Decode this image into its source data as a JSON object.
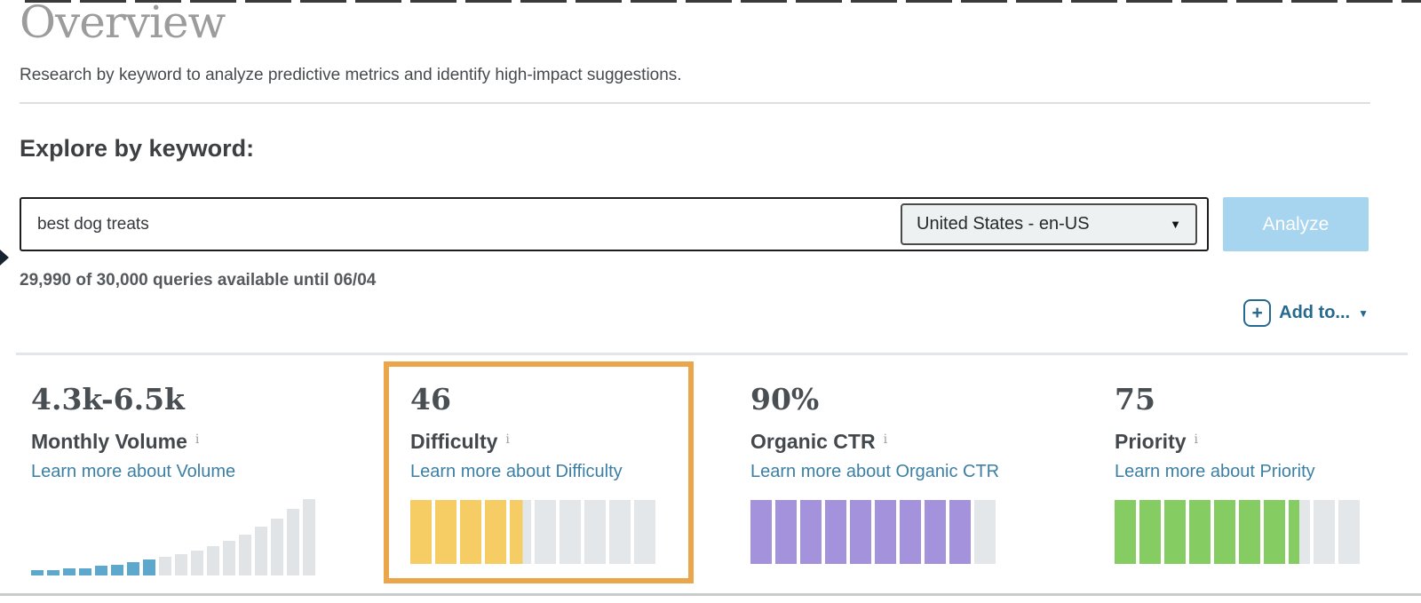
{
  "header": {
    "title": "Overview",
    "subtitle": "Research by keyword to analyze predictive metrics and identify high-impact suggestions."
  },
  "explore": {
    "heading": "Explore by keyword:",
    "keyword_input": {
      "value": "best dog treats"
    },
    "locale_dropdown": {
      "selected": "United States - en-US",
      "caret": "▼"
    },
    "analyze_button_label": "Analyze",
    "quota_text": "29,990 of 30,000 queries available until 06/04",
    "add_to": {
      "plus": "+",
      "label": "Add to...",
      "caret": "▼"
    }
  },
  "metrics": [
    {
      "key": "monthly-volume",
      "value": "4.3k-6.5k",
      "label": "Monthly Volume",
      "info_icon": "i",
      "link": "Learn more about Volume",
      "viz": "bar-chart"
    },
    {
      "key": "difficulty",
      "value": "46",
      "label": "Difficulty",
      "info_icon": "i",
      "link": "Learn more about Difficulty",
      "viz": "segments",
      "segments_total": 10,
      "segments_filled": 4.6,
      "fill_color": "#f6cd65",
      "highlighted": true
    },
    {
      "key": "organic-ctr",
      "value": "90%",
      "label": "Organic CTR",
      "info_icon": "i",
      "link": "Learn more about Organic CTR",
      "viz": "segments",
      "segments_total": 10,
      "segments_filled": 9,
      "fill_color": "#a492dc",
      "highlighted": false
    },
    {
      "key": "priority",
      "value": "75",
      "label": "Priority",
      "info_icon": "i",
      "link": "Learn more about Priority",
      "viz": "segments",
      "segments_total": 10,
      "segments_filled": 7.5,
      "fill_color": "#85cc62",
      "highlighted": false
    }
  ],
  "chart_data": {
    "type": "bar",
    "title": "Monthly Volume distribution mini chart",
    "bar_heights_pct": [
      6,
      6,
      8,
      8,
      11,
      12,
      15,
      18,
      21,
      24,
      28,
      33,
      39,
      46,
      55,
      64,
      75,
      86
    ],
    "highlighted_bar_count": 8,
    "colors": {
      "highlight": "#5ea8ce",
      "rest": "#e0e4e6"
    }
  },
  "colors": {
    "link_blue": "#3b7fa5",
    "analyze_button_bg": "#a7d4ee",
    "add_to_blue": "#26698e",
    "highlight_border_orange": "#eba64b",
    "segment_empty": "#e3e7e9",
    "difficulty_yellow": "#f6cd65",
    "organic_ctr_purple": "#a492dc",
    "priority_green": "#85cc62",
    "volume_bar_blue": "#5ea8ce"
  }
}
